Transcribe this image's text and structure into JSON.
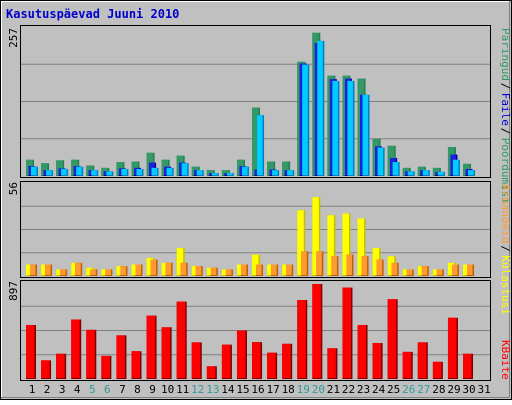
{
  "title": "Kasutuspäevad Juuni 2010",
  "colors": {
    "background": "#c0c0c0",
    "frame_outer": "#ffffff",
    "frame_border": "#000000",
    "title": "#0000cc",
    "gridline": "#808080",
    "day_weekday": "#000000",
    "day_weekend": "#339999",
    "pages_dark": "#267f52",
    "pages_light": "#339966",
    "hits_dark": "#0080c0",
    "hits_light": "#00ccff",
    "files_dark": "#0000a0",
    "files_light": "#2020e0",
    "visits_dark": "#c06000",
    "visits_light": "#ff9933",
    "sites_dark": "#c0c000",
    "sites_light": "#ffff00",
    "kbytes_dark": "#800000",
    "kbytes_light": "#ff0000"
  },
  "chart_data": [
    {
      "type": "bar",
      "panel": "top",
      "ylim": [
        0,
        257
      ],
      "y_tick_label": "257",
      "legend_placement": "right",
      "legend": [
        {
          "name": "Päringud",
          "color": "#339966"
        },
        {
          "name": "Faile",
          "color": "#0000cc"
        },
        {
          "name": "Pöördumisi",
          "color": "#339966"
        }
      ],
      "categories": [
        "1",
        "2",
        "3",
        "4",
        "5",
        "6",
        "7",
        "8",
        "9",
        "10",
        "11",
        "12",
        "13",
        "14",
        "15",
        "16",
        "17",
        "18",
        "19",
        "20",
        "21",
        "22",
        "23",
        "24",
        "25",
        "26",
        "27",
        "28",
        "29",
        "30",
        "31"
      ],
      "series": [
        {
          "name": "Pöördumisi",
          "values": [
            28,
            22,
            27,
            28,
            18,
            14,
            24,
            25,
            40,
            28,
            35,
            16,
            10,
            10,
            28,
            118,
            25,
            25,
            197,
            247,
            173,
            173,
            168,
            64,
            52,
            14,
            16,
            14,
            50,
            21,
            0
          ]
        },
        {
          "name": "Faile",
          "values": [
            17,
            10,
            13,
            17,
            10,
            8,
            13,
            14,
            23,
            16,
            23,
            10,
            5,
            5,
            17,
            11,
            11,
            10,
            194,
            229,
            167,
            168,
            140,
            51,
            31,
            8,
            10,
            7,
            37,
            12,
            0
          ]
        },
        {
          "name": "Päringud",
          "values": [
            16,
            10,
            12,
            16,
            10,
            8,
            12,
            12,
            14,
            14,
            22,
            10,
            5,
            5,
            16,
            105,
            10,
            10,
            192,
            233,
            164,
            164,
            140,
            49,
            24,
            8,
            10,
            7,
            28,
            10,
            0
          ]
        }
      ]
    },
    {
      "type": "bar",
      "panel": "middle",
      "ylim": [
        0,
        56
      ],
      "y_tick_label": "56",
      "legend_placement": "right",
      "legend": [
        {
          "name": "Aruandeid",
          "color": "#ff9933"
        },
        {
          "name": "Külastusi",
          "color": "#ffff00"
        }
      ],
      "categories": [
        "1",
        "2",
        "3",
        "4",
        "5",
        "6",
        "7",
        "8",
        "9",
        "10",
        "11",
        "12",
        "13",
        "14",
        "15",
        "16",
        "17",
        "18",
        "19",
        "20",
        "21",
        "22",
        "23",
        "24",
        "25",
        "26",
        "27",
        "28",
        "29",
        "30",
        "31"
      ],
      "series": [
        {
          "name": "Külastusi",
          "values": [
            7,
            7,
            4,
            8,
            5,
            4,
            6,
            7,
            11,
            8,
            17,
            6,
            5,
            4,
            7,
            13,
            7,
            7,
            40,
            48,
            37,
            38,
            35,
            17,
            12,
            4,
            6,
            4,
            8,
            7,
            0
          ]
        },
        {
          "name": "Aruandeid",
          "values": [
            7,
            7,
            4,
            8,
            4,
            4,
            6,
            7,
            10,
            8,
            8,
            6,
            5,
            4,
            7,
            7,
            7,
            7,
            15,
            15,
            12,
            13,
            12,
            10,
            8,
            4,
            6,
            4,
            7,
            7,
            0
          ]
        }
      ]
    },
    {
      "type": "bar",
      "panel": "bottom",
      "ylim": [
        0,
        897
      ],
      "y_tick_label": "897",
      "legend_placement": "right",
      "legend": [
        {
          "name": "KBaite",
          "color": "#ff0000"
        }
      ],
      "categories": [
        "1",
        "2",
        "3",
        "4",
        "5",
        "6",
        "7",
        "8",
        "9",
        "10",
        "11",
        "12",
        "13",
        "14",
        "15",
        "16",
        "17",
        "18",
        "19",
        "20",
        "21",
        "22",
        "23",
        "24",
        "25",
        "26",
        "27",
        "28",
        "29",
        "30",
        "31"
      ],
      "series": [
        {
          "name": "KBaite",
          "values": [
            510,
            176,
            238,
            562,
            464,
            218,
            412,
            262,
            598,
            488,
            731,
            346,
            120,
            324,
            458,
            348,
            248,
            332,
            746,
            897,
            290,
            863,
            510,
            340,
            753,
            256,
            346,
            162,
            578,
            238,
            0
          ]
        }
      ]
    }
  ],
  "days": [
    {
      "label": "1",
      "weekend": false
    },
    {
      "label": "2",
      "weekend": false
    },
    {
      "label": "3",
      "weekend": false
    },
    {
      "label": "4",
      "weekend": false
    },
    {
      "label": "5",
      "weekend": true
    },
    {
      "label": "6",
      "weekend": true
    },
    {
      "label": "7",
      "weekend": false
    },
    {
      "label": "8",
      "weekend": false
    },
    {
      "label": "9",
      "weekend": false
    },
    {
      "label": "10",
      "weekend": false
    },
    {
      "label": "11",
      "weekend": false
    },
    {
      "label": "12",
      "weekend": true
    },
    {
      "label": "13",
      "weekend": true
    },
    {
      "label": "14",
      "weekend": false
    },
    {
      "label": "15",
      "weekend": false
    },
    {
      "label": "16",
      "weekend": false
    },
    {
      "label": "17",
      "weekend": false
    },
    {
      "label": "18",
      "weekend": false
    },
    {
      "label": "19",
      "weekend": true
    },
    {
      "label": "20",
      "weekend": true
    },
    {
      "label": "21",
      "weekend": false
    },
    {
      "label": "22",
      "weekend": false
    },
    {
      "label": "23",
      "weekend": false
    },
    {
      "label": "24",
      "weekend": false
    },
    {
      "label": "25",
      "weekend": false
    },
    {
      "label": "26",
      "weekend": true
    },
    {
      "label": "27",
      "weekend": true
    },
    {
      "label": "28",
      "weekend": false
    },
    {
      "label": "29",
      "weekend": false
    },
    {
      "label": "30",
      "weekend": false
    },
    {
      "label": "31",
      "weekend": false
    }
  ]
}
